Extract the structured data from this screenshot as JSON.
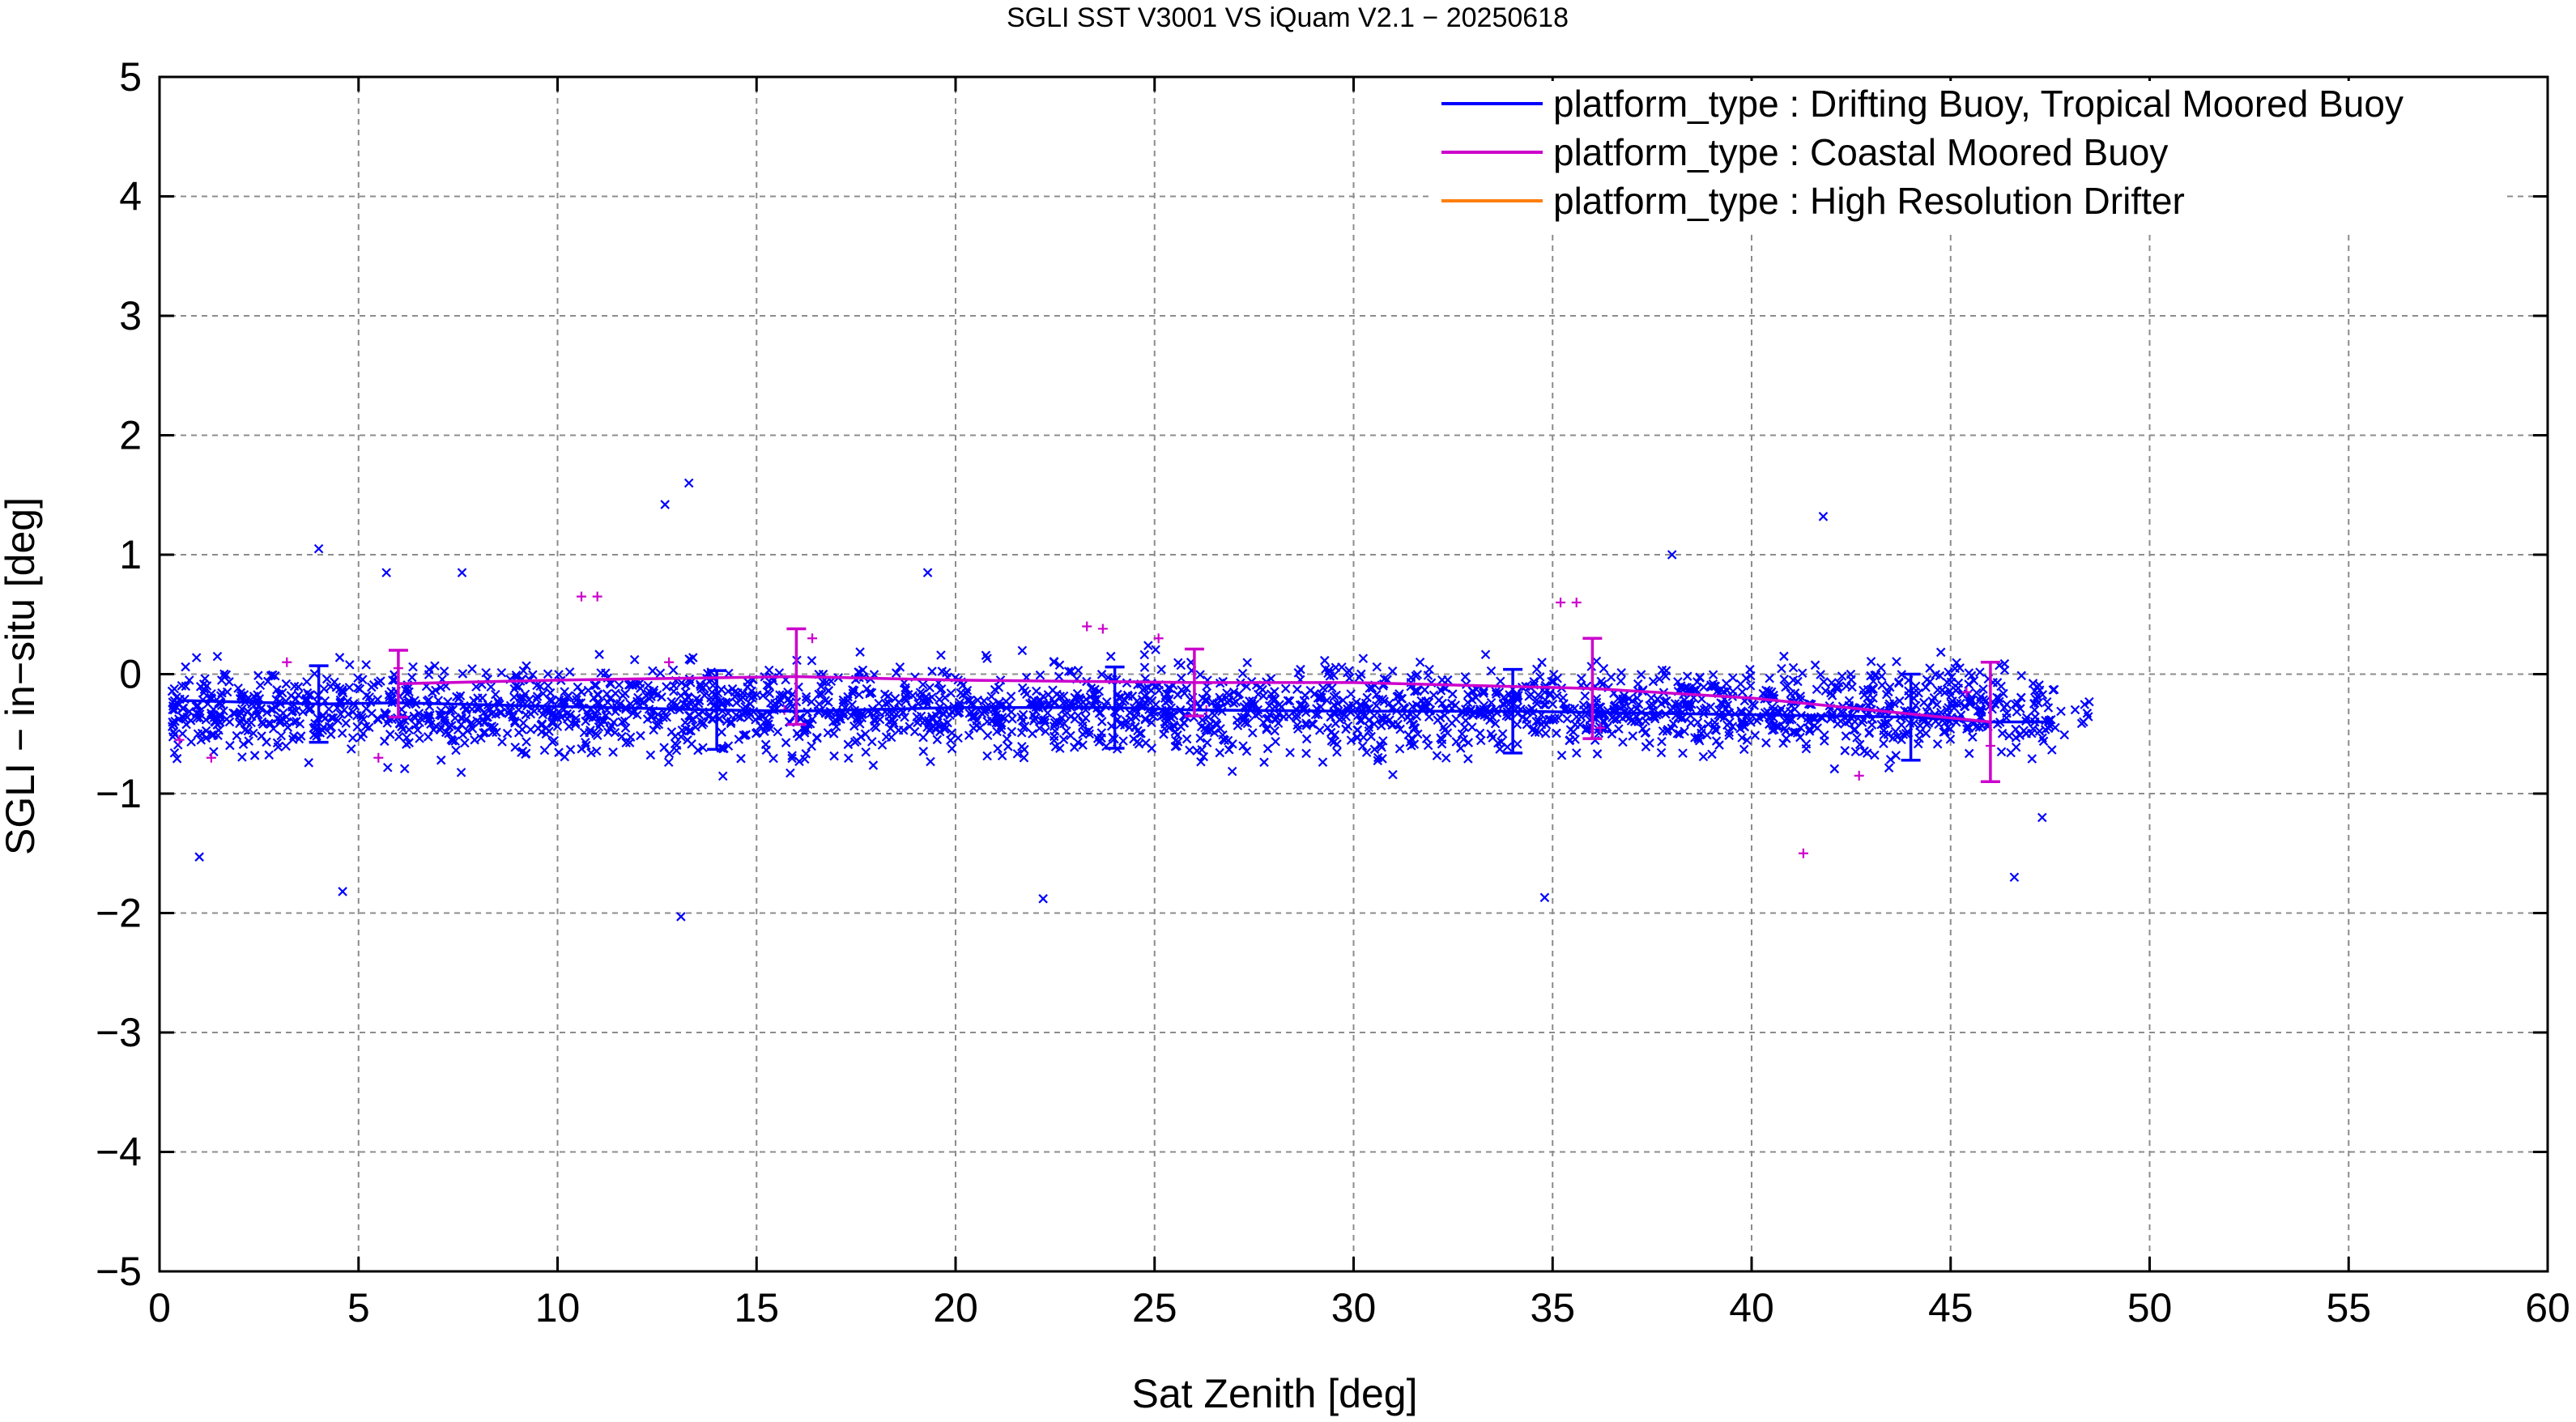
{
  "chart_data": {
    "type": "scatter",
    "title": "SGLI SST V3001 VS iQuam V2.1  − 20250618",
    "xlabel": "Sat Zenith [deg]",
    "ylabel": "SGLI − in−situ [deg]",
    "xlim": [
      0,
      60
    ],
    "ylim": [
      -5,
      5
    ],
    "xticks": [
      0,
      5,
      10,
      15,
      20,
      25,
      30,
      35,
      40,
      45,
      50,
      55,
      60
    ],
    "yticks": [
      -5,
      -4,
      -3,
      -2,
      -1,
      0,
      1,
      2,
      3,
      4,
      5
    ],
    "xtick_labels": [
      "0",
      "5",
      "10",
      "15",
      "20",
      "25",
      "30",
      "35",
      "40",
      "45",
      "50",
      "55",
      "60"
    ],
    "ytick_labels": [
      "−5",
      "−4",
      "−3",
      "−2",
      "−1",
      "0",
      "1",
      "2",
      "3",
      "4",
      "5"
    ],
    "grid": true,
    "legend_position": "top-right",
    "series": [
      {
        "name": "platform_type : Drifting Buoy, Tropical Moored Buoy",
        "color": "#0000ff",
        "marker": "x",
        "scatter_distribution": {
          "x_range": [
            0.3,
            48.5
          ],
          "center": -0.3,
          "spread": 0.35
        },
        "outliers": [
          [
            4.0,
            1.05
          ],
          [
            12.7,
            1.42
          ],
          [
            13.3,
            1.6
          ],
          [
            41.8,
            1.32
          ],
          [
            4.6,
            -1.82
          ],
          [
            13.1,
            -2.03
          ],
          [
            22.2,
            -1.88
          ],
          [
            34.8,
            -1.87
          ],
          [
            1.0,
            -1.53
          ],
          [
            46.6,
            -1.7
          ],
          [
            47.3,
            -1.2
          ],
          [
            19.3,
            0.85
          ],
          [
            38.0,
            1.0
          ],
          [
            7.6,
            0.85
          ],
          [
            5.7,
            0.85
          ]
        ],
        "mean_line": {
          "x": [
            0.5,
            4,
            6,
            10,
            14,
            16,
            20,
            24,
            26,
            30,
            34,
            36,
            40,
            44,
            46,
            47.5
          ],
          "y": [
            -0.22,
            -0.25,
            -0.24,
            -0.27,
            -0.3,
            -0.31,
            -0.28,
            -0.28,
            -0.3,
            -0.31,
            -0.31,
            -0.32,
            -0.34,
            -0.36,
            -0.4,
            -0.4
          ]
        },
        "errorbars": [
          {
            "x": 4,
            "y": -0.25,
            "err": 0.32
          },
          {
            "x": 14,
            "y": -0.3,
            "err": 0.33
          },
          {
            "x": 24,
            "y": -0.28,
            "err": 0.34
          },
          {
            "x": 34,
            "y": -0.31,
            "err": 0.35
          },
          {
            "x": 44,
            "y": -0.36,
            "err": 0.36
          }
        ]
      },
      {
        "name": "platform_type : Coastal Moored Buoy",
        "color": "#cc00cc",
        "marker": "+",
        "points": [
          [
            0.5,
            -0.55
          ],
          [
            1.3,
            -0.7
          ],
          [
            3.2,
            0.1
          ],
          [
            5.5,
            -0.7
          ],
          [
            6.0,
            0.05
          ],
          [
            10.6,
            0.65
          ],
          [
            11.0,
            0.65
          ],
          [
            12.8,
            0.1
          ],
          [
            15.7,
            -0.3
          ],
          [
            16.4,
            0.3
          ],
          [
            23.3,
            0.4
          ],
          [
            23.7,
            0.38
          ],
          [
            25.1,
            0.3
          ],
          [
            26.3,
            -0.3
          ],
          [
            35.2,
            0.6
          ],
          [
            35.6,
            0.6
          ],
          [
            36.2,
            -0.45
          ],
          [
            41.3,
            -1.5
          ],
          [
            42.7,
            -0.85
          ],
          [
            46.0,
            -0.6
          ],
          [
            45.4,
            -0.15
          ]
        ],
        "mean_line": {
          "x": [
            6,
            10,
            16,
            20,
            26,
            30,
            36,
            40,
            46
          ],
          "y": [
            -0.08,
            -0.05,
            -0.02,
            -0.05,
            -0.07,
            -0.07,
            -0.12,
            -0.2,
            -0.4
          ]
        },
        "errorbars": [
          {
            "x": 6,
            "y": -0.08,
            "err": 0.28
          },
          {
            "x": 16,
            "y": -0.02,
            "err": 0.4
          },
          {
            "x": 26,
            "y": -0.07,
            "err": 0.28
          },
          {
            "x": 36,
            "y": -0.12,
            "err": 0.42
          },
          {
            "x": 46,
            "y": -0.4,
            "err": 0.5
          }
        ]
      },
      {
        "name": "platform_type : High Resolution Drifter",
        "color": "#ff7f0e",
        "marker": "none",
        "points": []
      }
    ]
  }
}
